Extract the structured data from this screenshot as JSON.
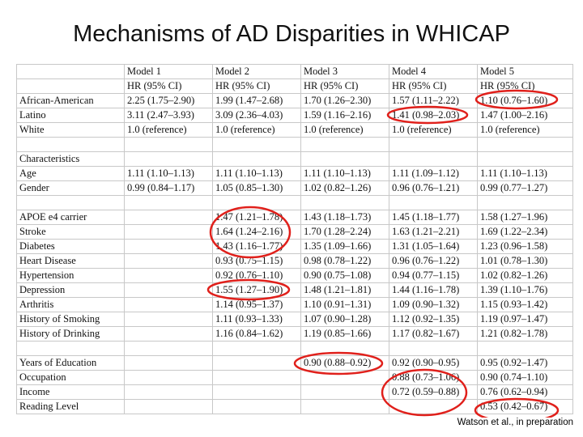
{
  "title": "Mechanisms of AD Disparities in WHICAP",
  "table": {
    "header": [
      [
        null,
        "Model 1",
        "Model 2",
        "Model 3",
        "Model 4",
        "Model 5"
      ],
      [
        null,
        "HR (95% CI)",
        "HR (95% CI)",
        "HR (95% CI)",
        "HR (95% CI)",
        "HR (95% CI)"
      ]
    ],
    "groups": [
      {
        "rows": [
          [
            "African-American",
            "2.25 (1.75–2.90)",
            "1.99 (1.47–2.68)",
            "1.70 (1.26–2.30)",
            "1.57 (1.11–2.22)",
            "1.10 (0.76–1.60)"
          ],
          [
            "Latino",
            "3.11 (2.47–3.93)",
            "3.09 (2.36–4.03)",
            "1.59 (1.16–2.16)",
            "1.41 (0.98–2.03)",
            "1.47 (1.00–2.16)"
          ],
          [
            "White",
            "1.0 (reference)",
            "1.0 (reference)",
            "1.0 (reference)",
            "1.0 (reference)",
            "1.0 (reference)"
          ]
        ]
      },
      {
        "heading": "Characteristics",
        "rows": [
          [
            "Age",
            "1.11 (1.10–1.13)",
            "1.11 (1.10–1.13)",
            "1.11 (1.10–1.13)",
            "1.11 (1.09–1.12)",
            "1.11 (1.10–1.13)"
          ],
          [
            "Gender",
            "0.99 (0.84–1.17)",
            "1.05 (0.85–1.30)",
            "1.02 (0.82–1.26)",
            "0.96 (0.76–1.21)",
            "0.99 (0.77–1.27)"
          ]
        ]
      },
      {
        "rows": [
          [
            "APOE e4 carrier",
            null,
            "1.47 (1.21–1.78)",
            "1.43 (1.18–1.73)",
            "1.45 (1.18–1.77)",
            "1.58 (1.27–1.96)"
          ],
          [
            "Stroke",
            null,
            "1.64 (1.24–2.16)",
            "1.70 (1.28–2.24)",
            "1.63 (1.21–2.21)",
            "1.69 (1.22–2.34)"
          ],
          [
            "Diabetes",
            null,
            "1.43 (1.16–1.77)",
            "1.35 (1.09–1.66)",
            "1.31 (1.05–1.64)",
            "1.23 (0.96–1.58)"
          ],
          [
            "Heart Disease",
            null,
            "0.93 (0.75–1.15)",
            "0.98 (0.78–1.22)",
            "0.96 (0.76–1.22)",
            "1.01 (0.78–1.30)"
          ],
          [
            "Hypertension",
            null,
            "0.92 (0.76–1.10)",
            "0.90 (0.75–1.08)",
            "0.94 (0.77–1.15)",
            "1.02 (0.82–1.26)"
          ],
          [
            "Depression",
            null,
            "1.55 (1.27–1.90)",
            "1.48 (1.21–1.81)",
            "1.44 (1.16–1.78)",
            "1.39 (1.10–1.76)"
          ],
          [
            "Arthritis",
            null,
            "1.14 (0.95–1.37)",
            "1.10 (0.91–1.31)",
            "1.09 (0.90–1.32)",
            "1.15 (0.93–1.42)"
          ],
          [
            "History of Smoking",
            null,
            "1.11 (0.93–1.33)",
            "1.07 (0.90–1.28)",
            "1.12 (0.92–1.35)",
            "1.19 (0.97–1.47)"
          ],
          [
            "History of Drinking",
            null,
            "1.16 (0.84–1.62)",
            "1.19 (0.85–1.66)",
            "1.17 (0.82–1.67)",
            "1.21 (0.82–1.78)"
          ]
        ]
      },
      {
        "rows": [
          [
            "Years of Education",
            null,
            null,
            "0.90 (0.88–0.92)",
            "0.92 (0.90–0.95)",
            "0.95 (0.92–1.47)"
          ],
          [
            "Occupation",
            null,
            null,
            null,
            "0.88 (0.73–1.06)",
            "0.90 (0.74–1.10)"
          ],
          [
            "Income",
            null,
            null,
            null,
            "0.72 (0.59–0.88)",
            "0.76 (0.62–0.94)"
          ],
          [
            "Reading Level",
            null,
            null,
            null,
            null,
            "0.53 (0.42–0.67)"
          ]
        ]
      }
    ]
  },
  "footnote": "Watson et al., in preparation"
}
